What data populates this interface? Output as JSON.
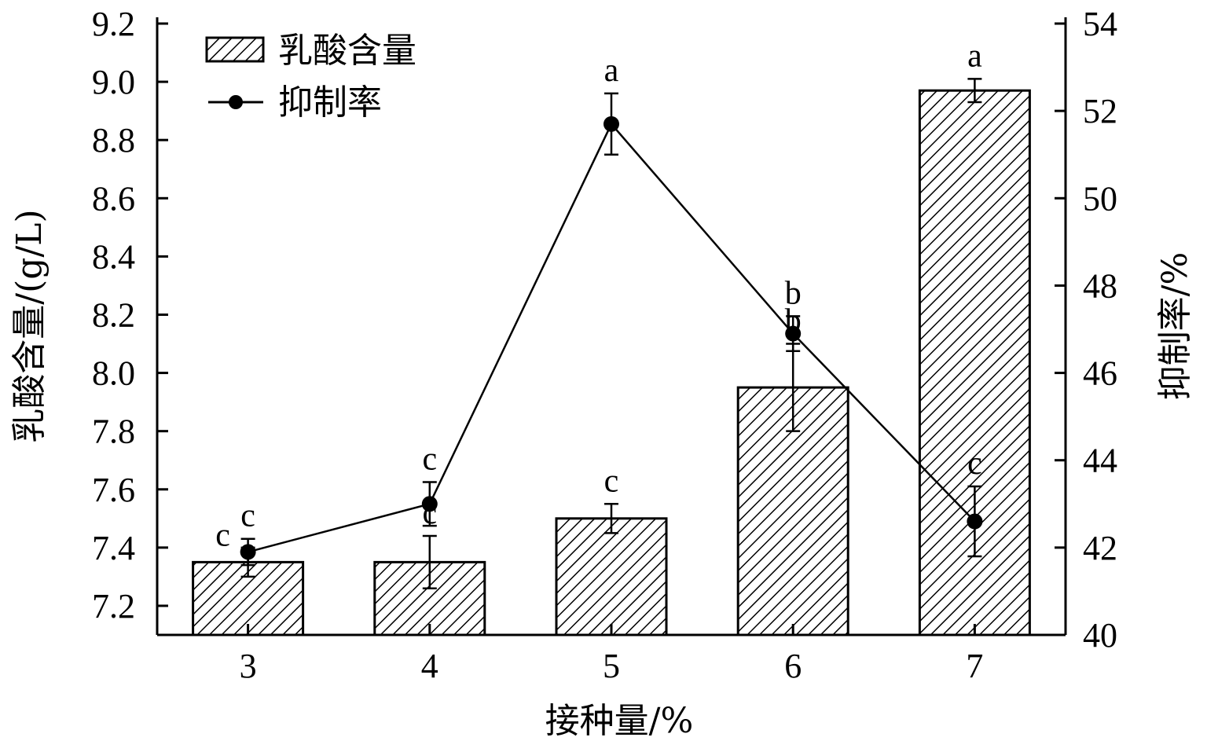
{
  "chart_data": {
    "type": "bar",
    "categories": [
      "3",
      "4",
      "5",
      "6",
      "7"
    ],
    "xlabel": "接种量/%",
    "ylabel_left": "乳酸含量/(g/L)",
    "ylabel_right": "抑制率/%",
    "ylim_left": [
      7.1,
      9.2
    ],
    "ylim_right": [
      40,
      54
    ],
    "yticks_left": [
      "7.2",
      "7.4",
      "7.6",
      "7.8",
      "8.0",
      "8.2",
      "8.4",
      "8.6",
      "8.8",
      "9.0",
      "9.2"
    ],
    "yticks_right": [
      "40",
      "42",
      "44",
      "46",
      "48",
      "50",
      "52",
      "54"
    ],
    "legend_position": "top-left",
    "series": [
      {
        "name": "乳酸含量",
        "kind": "bar",
        "axis": "left",
        "values": [
          7.35,
          7.35,
          7.5,
          7.95,
          8.97
        ],
        "errors": [
          0.05,
          0.09,
          0.05,
          0.15,
          0.04
        ],
        "labels": [
          "c",
          "c",
          "c",
          "b",
          "a"
        ]
      },
      {
        "name": "抑制率",
        "kind": "line",
        "axis": "right",
        "values": [
          41.9,
          43.0,
          51.7,
          46.9,
          42.6
        ],
        "errors": [
          0.3,
          0.5,
          0.7,
          0.4,
          0.8
        ],
        "labels": [
          "c",
          "c",
          "a",
          "b",
          "c"
        ]
      }
    ]
  }
}
